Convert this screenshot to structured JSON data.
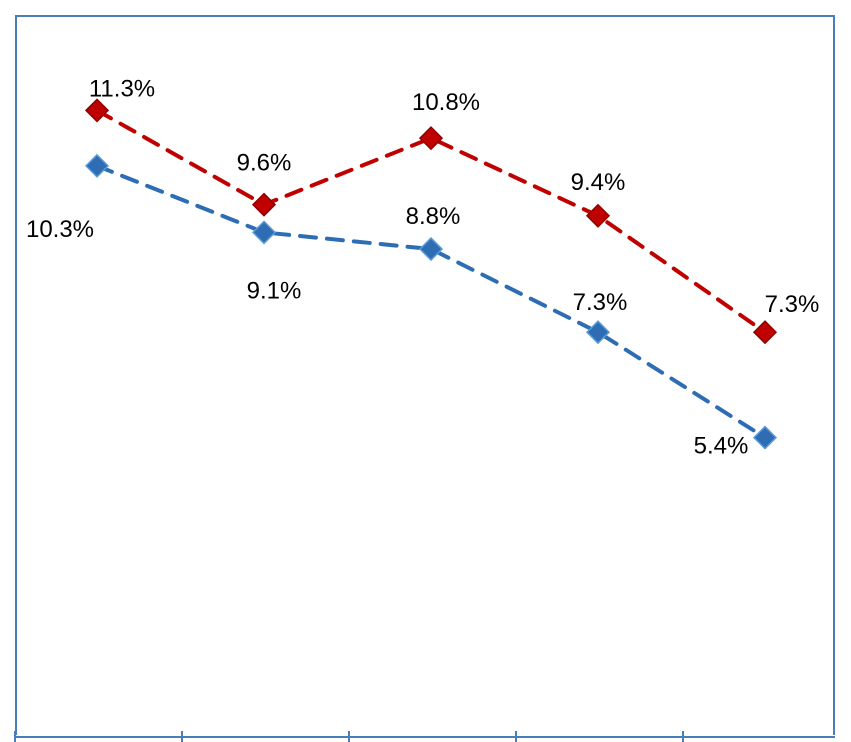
{
  "chart_data": {
    "type": "line",
    "categories": [
      "",
      "",
      "",
      "",
      ""
    ],
    "ylim": [
      0,
      14
    ],
    "grid": false,
    "series": [
      {
        "color": "#c00000",
        "line_style": "dashed",
        "marker": "diamond",
        "values": [
          11.3,
          9.6,
          10.8,
          9.4,
          7.3
        ],
        "labels": [
          "11.3%",
          "9.6%",
          "10.8%",
          "9.4%",
          "7.3%"
        ]
      },
      {
        "color": "#2e6db4",
        "line_style": "dashed",
        "marker": "diamond",
        "values": [
          10.3,
          9.1,
          8.8,
          7.3,
          5.4
        ],
        "labels": [
          "10.3%",
          "9.1%",
          "8.8%",
          "7.3%",
          "5.4%"
        ]
      }
    ]
  }
}
